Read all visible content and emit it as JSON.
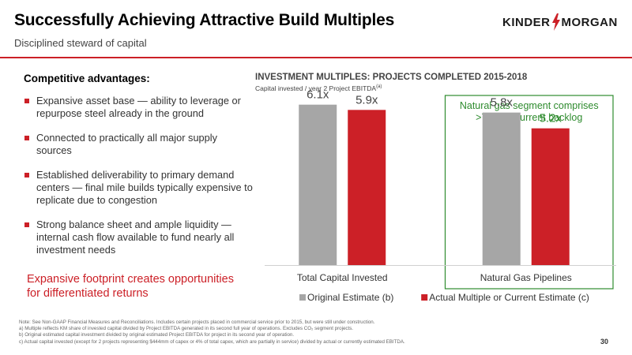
{
  "header": {
    "title": "Successfully Achieving Attractive Build Multiples",
    "subtitle": "Disciplined  steward of capital",
    "logo_left": "KINDER",
    "logo_right": "MORGAN"
  },
  "left": {
    "heading": "Competitive advantages:",
    "bullets": [
      "Expansive  asset base — ability to leverage or repurpose steel already in the ground",
      "Connected to practically all major supply sources",
      "Established deliverability to primary demand centers — final mile builds typically expensive to replicate due to congestion",
      "Strong balance sheet and ample liquidity — internal cash flow available to fund nearly all investment  needs"
    ],
    "tagline": "Expansive footprint creates opportunities for differentiated returns"
  },
  "chart_data": {
    "type": "bar",
    "title": "INVESTMENT MULTIPLES:  PROJECTS COMPLETED 2015-2018",
    "subtitle": "Capital invested / year 2 Project EBITDA",
    "subtitle_note": "(a)",
    "categories": [
      "Total Capital Invested",
      "Natural Gas Pipelines"
    ],
    "series": [
      {
        "name": "Original Estimate (b)",
        "values": [
          6.1,
          5.8
        ],
        "labels": [
          "6.1x",
          "5.8x"
        ],
        "color": "#a6a6a6",
        "label_color": "#444444"
      },
      {
        "name": "Actual Multiple or Current Estimate (c)",
        "values": [
          5.9,
          5.2
        ],
        "labels": [
          "5.9x",
          "5.2x"
        ],
        "color": "#cc2027",
        "label_color": "#444444"
      }
    ],
    "ylim": [
      0,
      6.6
    ],
    "legend_placement": "bottom",
    "highlight": {
      "category_index": 1,
      "note": "Natural gas segment comprises >75% of current backlog",
      "color": "#2e8b2e"
    }
  },
  "footnotes": [
    "Note:  See Non-GAAP Financial Measures and Reconciliations. Includes certain projects placed in commercial service prior to 2015, but were still under construction.",
    "a)  Multiple reflects KM share of invested capital divided by Project EBITDA generated in its second full year of operations. Excludes CO₂ segment projects.",
    "b)  Original estimated capital investment divided by original estimated Project EBITDA for project in its second year of operation.",
    "c)  Actual capital invested (except for 2 projects representing $444mm of capex or 4% of total capex, which are partially in service) divided by actual or currently estimated EBITDA."
  ],
  "page_number": "30",
  "colors": {
    "accent": "#cc2027",
    "gray": "#a6a6a6",
    "green": "#2e8b2e"
  }
}
